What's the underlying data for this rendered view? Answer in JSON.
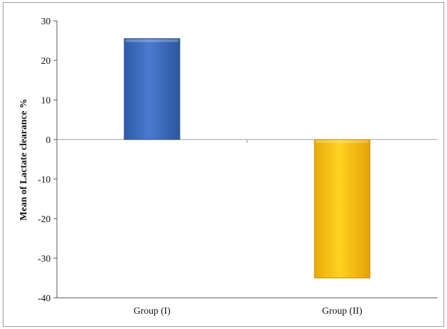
{
  "chart_data": {
    "type": "bar",
    "categories": [
      "Group (I)",
      "Group (II)"
    ],
    "values": [
      25.5,
      -35
    ],
    "colors": [
      "#3f6cc1",
      "#f7c315"
    ],
    "title": "",
    "xlabel": "",
    "ylabel": "Mean of Lactate clearance %",
    "ylim": [
      -40,
      30
    ],
    "yticks": [
      "30",
      "20",
      "10",
      "0",
      "-10",
      "-20",
      "-30",
      "-40"
    ],
    "grid": false,
    "legend": "none"
  }
}
